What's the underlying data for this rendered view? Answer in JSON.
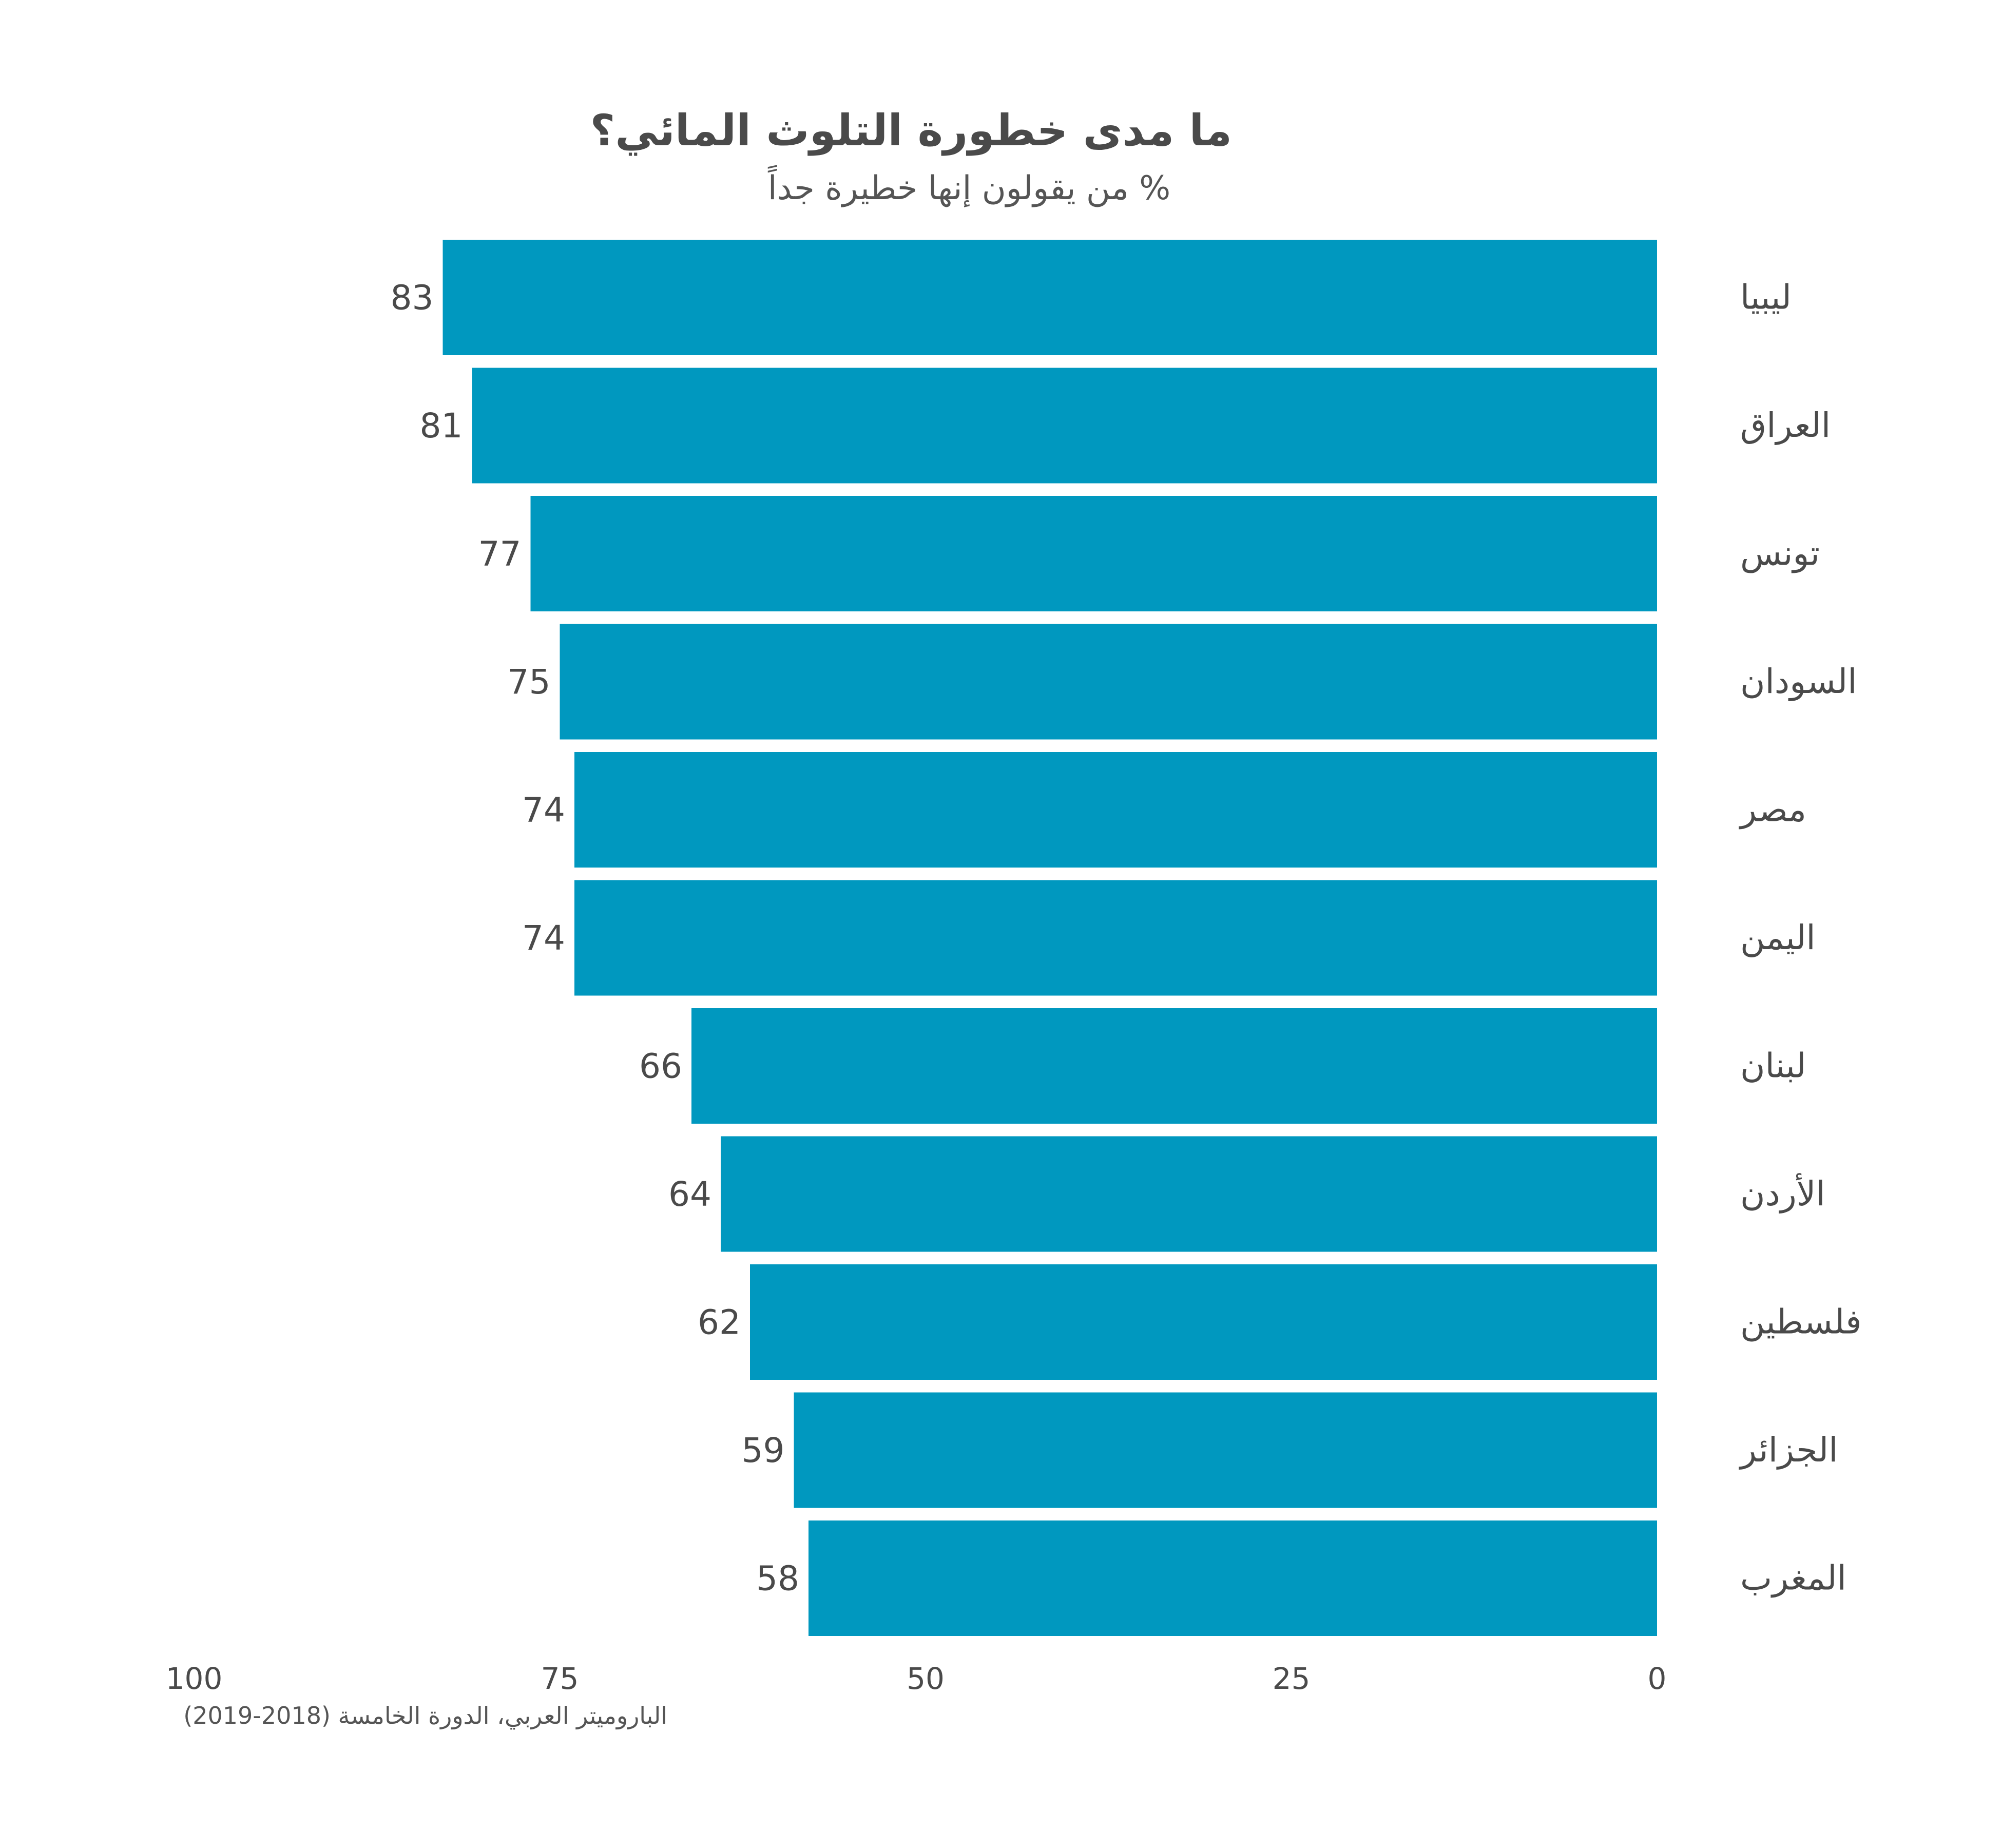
{
  "chart_data": {
    "type": "bar",
    "orientation": "horizontal",
    "title": "ما مدى خطورة التلوث المائي؟",
    "subtitle": "% من يقولون إنها خطيرة جداً",
    "source": "الباروميتر العربي، الدورة الخامسة (2018-2019)",
    "categories": [
      "ليبيا",
      "العراق",
      "تونس",
      "السودان",
      "مصر",
      "اليمن",
      "لبنان",
      "الأردن",
      "فلسطين",
      "الجزائر",
      "المغرب"
    ],
    "values": [
      83,
      81,
      77,
      75,
      74,
      74,
      66,
      64,
      62,
      59,
      58
    ],
    "xlim": [
      0,
      100
    ],
    "x_ticks": [
      0,
      25,
      50,
      75,
      100
    ],
    "x_axis_direction": "reversed",
    "bar_color": "#0098BF",
    "grid": false,
    "legend": "none"
  }
}
